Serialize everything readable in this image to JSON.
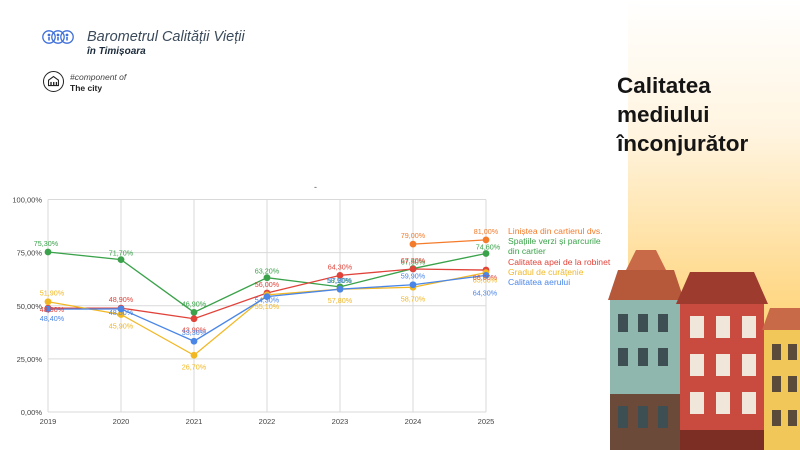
{
  "brand": {
    "title": "Barometrul Calității Vieții",
    "subtitle": "în Timișoara",
    "component_line1": "#component of",
    "component_line2": "The city"
  },
  "panel": {
    "title_lines": [
      "Calitatea",
      "mediului",
      "înconjurător"
    ]
  },
  "marker": "-",
  "icons": {
    "logo": "four-figure-circles-logo",
    "component": "building-circle-icon"
  },
  "chart_data": {
    "type": "line",
    "x": [
      "2019",
      "2020",
      "2021",
      "2022",
      "2023",
      "2024",
      "2025"
    ],
    "ylim": [
      0,
      100
    ],
    "y_ticks": [
      "0,00%",
      "25,00%",
      "50,00%",
      "75,00%",
      "100,00%"
    ],
    "grid": true,
    "legend_position": "right",
    "series": [
      {
        "name": "Liniștea din cartierul dvs.",
        "color": "#f47b2a",
        "values": [
          null,
          null,
          null,
          null,
          null,
          79.0,
          81.0
        ],
        "labels": [
          "",
          "",
          "",
          "",
          "",
          "79,00%",
          "81,00%"
        ]
      },
      {
        "name": "Spațiile verzi și parcurile din cartier",
        "color": "#3aa24a",
        "values": [
          75.3,
          71.7,
          46.9,
          63.2,
          58.9,
          67.5,
          74.6
        ],
        "labels": [
          "75,30%",
          "71,70%",
          "46,90%",
          "63,20%",
          "58,90%",
          "67,50%",
          "74,60%"
        ]
      },
      {
        "name": "Calitatea apei de la robinet",
        "color": "#e0433a",
        "values": [
          48.9,
          48.9,
          43.9,
          56.0,
          64.3,
          67.3,
          66.8
        ],
        "labels": [
          "48,90%",
          "48,90%",
          "43,90%",
          "56,00%",
          "64,30%",
          "67,30%",
          "66,80%"
        ]
      },
      {
        "name": "Gradul de curățenie",
        "color": "#f2b824",
        "values": [
          51.9,
          45.9,
          26.7,
          55.1,
          57.8,
          58.7,
          65.6
        ],
        "labels": [
          "51,90%",
          "45,90%",
          "26,70%",
          "55,10%",
          "57,80%",
          "58,70%",
          "65,60%"
        ]
      },
      {
        "name": "Calitatea aerului",
        "color": "#4a86e8",
        "values": [
          48.4,
          48.5,
          33.3,
          54.3,
          57.8,
          59.9,
          64.3
        ],
        "labels": [
          "48,40%",
          "48,50%",
          "33,30%",
          "54,30%",
          "57,80%",
          "59,90%",
          "64,30%"
        ]
      }
    ],
    "legend": [
      {
        "label": "Liniștea din cartierul dvs.",
        "color": "#f47b2a"
      },
      {
        "label": "Spațiile verzi și parcurile",
        "color": "#3aa24a"
      },
      {
        "label": "din cartier",
        "color": "#3aa24a"
      },
      {
        "label": "Calitatea apei de la robinet",
        "color": "#e0433a"
      },
      {
        "label": "Gradul de curățenie",
        "color": "#f2b824"
      },
      {
        "label": "Calitatea aerului",
        "color": "#4a86e8"
      }
    ]
  }
}
